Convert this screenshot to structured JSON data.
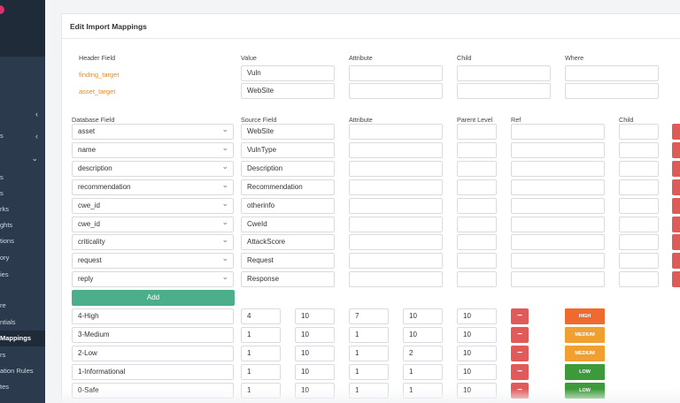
{
  "sidebar": {
    "items": [
      {
        "label": "s",
        "top": 0
      },
      {
        "label": "s",
        "top": 0
      },
      {
        "label": "rks",
        "top": 0
      },
      {
        "label": "ghts",
        "top": 0
      },
      {
        "label": "tions",
        "top": 0
      },
      {
        "label": "ory",
        "top": 0
      },
      {
        "label": "ies",
        "top": 0
      },
      {
        "label": "re",
        "top": 0
      },
      {
        "label": "ntials",
        "top": 0
      },
      {
        "label": "Mappings",
        "top": 0
      },
      {
        "label": "rs",
        "top": 0
      },
      {
        "label": "ation Rules",
        "top": 0
      },
      {
        "label": "tes",
        "top": 0
      }
    ],
    "items2_label": "s"
  },
  "panel": {
    "title": "Edit Import Mappings",
    "header_cols": {
      "header_field": "Header Field",
      "value": "Value",
      "attribute": "Attribute",
      "child": "Child",
      "where": "Where"
    },
    "header_rows": [
      {
        "field": "finding_target",
        "value": "Vuln"
      },
      {
        "field": "asset_target",
        "value": "WebSite"
      }
    ],
    "db_cols": {
      "database_field": "Database Field",
      "source_field": "Source Field",
      "attribute": "Attribute",
      "parent_level": "Parent Level",
      "ref": "Ref",
      "child": "Child"
    },
    "db_rows": [
      {
        "db": "asset",
        "source": "WebSite"
      },
      {
        "db": "name",
        "source": "VulnType"
      },
      {
        "db": "description",
        "source": "Description"
      },
      {
        "db": "recommendation",
        "source": "Recommendation"
      },
      {
        "db": "cwe_id",
        "source": "otherinfo"
      },
      {
        "db": "cwe_id",
        "source": "CweId"
      },
      {
        "db": "criticality",
        "source": "AttackScore"
      },
      {
        "db": "request",
        "source": "Request"
      },
      {
        "db": "reply",
        "source": "Response"
      }
    ],
    "add_label": "Add",
    "remove_symbol": "−",
    "severity_rows": [
      {
        "name": "4-High",
        "v": [
          "4",
          "10",
          "7",
          "10",
          "10"
        ],
        "badge": "HIGH",
        "color": "#ee6a2e"
      },
      {
        "name": "3-Medium",
        "v": [
          "1",
          "10",
          "1",
          "10",
          "10"
        ],
        "badge": "MEDIUM",
        "color": "#f0a030"
      },
      {
        "name": "2-Low",
        "v": [
          "1",
          "10",
          "1",
          "2",
          "10"
        ],
        "badge": "MEDIUM",
        "color": "#f0a030"
      },
      {
        "name": "1-Informational",
        "v": [
          "1",
          "10",
          "1",
          "1",
          "10"
        ],
        "badge": "LOW",
        "color": "#3d9a3a"
      },
      {
        "name": "0-Safe",
        "v": [
          "1",
          "10",
          "1",
          "1",
          "10"
        ],
        "badge": "LOW",
        "color": "#3d9a3a"
      }
    ]
  }
}
